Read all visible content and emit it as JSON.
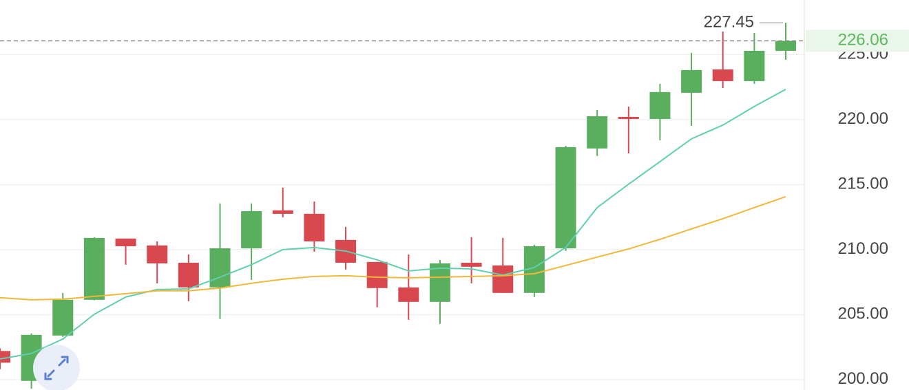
{
  "chart_data": {
    "type": "candlestick",
    "open": [
      202.2,
      199.9,
      203.39,
      206.14,
      210.85,
      210.32,
      208.99,
      207.09,
      210.1,
      213.02,
      212.75,
      210.74,
      209.05,
      207.09,
      205.98,
      208.99,
      208.78,
      206.67,
      210.1,
      217.78,
      220.21,
      220.05,
      222.06,
      223.86,
      222.96,
      225.29
    ],
    "high": [
      202.4,
      203.55,
      206.67,
      210.95,
      210.85,
      210.63,
      209.63,
      213.55,
      213.55,
      214.76,
      213.7,
      211.75,
      209.05,
      209.63,
      209.2,
      210.95,
      210.9,
      210.37,
      217.99,
      220.74,
      221.0,
      222.75,
      225.13,
      226.77,
      226.67,
      227.45
    ],
    "low": [
      200.8,
      199.3,
      203.28,
      206.1,
      208.84,
      207.4,
      206.03,
      204.66,
      207.67,
      212.49,
      209.84,
      208.47,
      205.56,
      204.6,
      204.29,
      207.41,
      206.67,
      206.35,
      209.9,
      217.2,
      217.4,
      218.41,
      219.52,
      222.43,
      222.75,
      224.6
    ],
    "close": [
      201.3,
      203.44,
      206.14,
      210.9,
      210.26,
      208.94,
      207.09,
      210.1,
      212.96,
      212.75,
      210.63,
      208.99,
      207.04,
      205.98,
      208.94,
      208.68,
      206.67,
      210.26,
      217.88,
      220.26,
      220.05,
      222.12,
      223.81,
      222.96,
      225.29,
      226.06
    ],
    "up_color": "#5aaf5e",
    "down_color": "#d9474f",
    "moving_averages": [
      {
        "color": "#5fcfb0",
        "values": [
          201.59,
          202.01,
          203.12,
          205.03,
          206.35,
          206.93,
          206.98,
          207.88,
          208.84,
          210.0,
          210.16,
          209.89,
          209.21,
          208.36,
          208.57,
          208.52,
          208.04,
          208.62,
          210.16,
          213.23,
          215.03,
          216.77,
          218.52,
          219.58,
          221.01,
          222.33
        ]
      },
      {
        "color": "#f0b73a",
        "values": [
          206.3,
          206.14,
          206.19,
          206.4,
          206.61,
          206.83,
          206.83,
          207.04,
          207.41,
          207.72,
          207.94,
          207.99,
          207.88,
          207.83,
          207.88,
          207.94,
          207.99,
          208.15,
          208.78,
          209.42,
          210.05,
          210.79,
          211.59,
          212.38,
          213.23,
          214.07
        ]
      }
    ],
    "ylim": [
      199.2,
      229.2
    ],
    "yticks": [
      {
        "value": 200,
        "label": "200.00"
      },
      {
        "value": 205,
        "label": "205.00"
      },
      {
        "value": 210,
        "label": "210.00"
      },
      {
        "value": 215,
        "label": "215.00"
      },
      {
        "value": 220,
        "label": "220.00"
      },
      {
        "value": 225,
        "label": "225.00"
      }
    ],
    "grid": true,
    "max_marker": {
      "value": 227.45,
      "label": "227.45"
    },
    "last_price": {
      "value": 226.06,
      "label": "226.06",
      "color": "#5cb85c"
    }
  }
}
